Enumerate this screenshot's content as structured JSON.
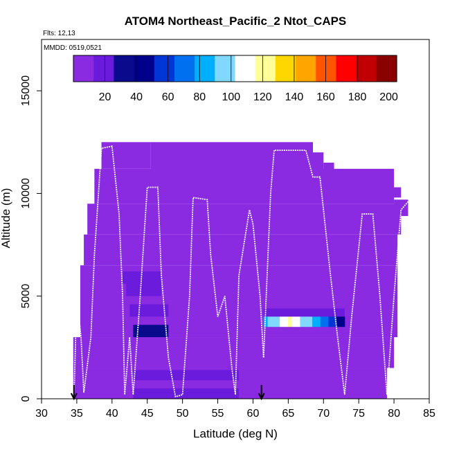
{
  "chart_data": {
    "type": "heatmap",
    "title": "ATOM4 Northeast_Pacific_2 Ntot_CAPS",
    "flights_label": "Flts: 12,13",
    "dates_label": "MMDD: 0519,0521",
    "xlabel": "Latitude (deg N)",
    "ylabel": "Altitude (m)",
    "xlim": [
      30,
      85
    ],
    "ylim": [
      0,
      17500
    ],
    "x_ticks": [
      30,
      35,
      40,
      45,
      50,
      55,
      60,
      65,
      70,
      75,
      80,
      85
    ],
    "y_ticks": [
      0,
      5000,
      10000,
      15000
    ],
    "colorbar": {
      "range": [
        0,
        205
      ],
      "ticks": [
        20,
        40,
        60,
        80,
        100,
        120,
        140,
        160,
        180,
        200
      ],
      "colors": [
        "#8a2be2",
        "#6a1bdc",
        "#0a0a8c",
        "#00008b",
        "#0035d6",
        "#0070f0",
        "#00b0ff",
        "#80d8ff",
        "#ffffff",
        "#ffff99",
        "#ffd700",
        "#ffa500",
        "#ff5500",
        "#ff0000",
        "#c00000",
        "#8b0000"
      ]
    },
    "background_cells": [
      {
        "lat0": 38.5,
        "lat1": 45.5,
        "alt0": 11200,
        "alt1": 12500
      },
      {
        "lat0": 45.5,
        "lat1": 68.5,
        "alt0": 11000,
        "alt1": 12500
      },
      {
        "lat0": 68.5,
        "lat1": 70,
        "alt0": 10700,
        "alt1": 12000
      },
      {
        "lat0": 70,
        "lat1": 71.5,
        "alt0": 10500,
        "alt1": 11500
      },
      {
        "lat0": 71.5,
        "lat1": 74,
        "alt0": 10200,
        "alt1": 11000
      },
      {
        "lat0": 74,
        "lat1": 77,
        "alt0": 10000,
        "alt1": 10800
      },
      {
        "lat0": 77,
        "lat1": 81,
        "alt0": 9800,
        "alt1": 10300
      },
      {
        "lat0": 37.5,
        "lat1": 80,
        "alt0": 9500,
        "alt1": 11200
      },
      {
        "lat0": 80,
        "lat1": 82,
        "alt0": 8900,
        "alt1": 9700
      },
      {
        "lat0": 36.5,
        "lat1": 81,
        "alt0": 8000,
        "alt1": 9500
      },
      {
        "lat0": 36,
        "lat1": 80.5,
        "alt0": 6500,
        "alt1": 8000
      },
      {
        "lat0": 35.5,
        "lat1": 80.5,
        "alt0": 3000,
        "alt1": 6500
      },
      {
        "lat0": 34.5,
        "lat1": 80,
        "alt0": 1500,
        "alt1": 3000
      },
      {
        "lat0": 34.5,
        "lat1": 79,
        "alt0": 0,
        "alt1": 1500
      }
    ],
    "intense_cells": [
      {
        "lat0": 41.5,
        "lat1": 47,
        "alt0": 5600,
        "alt1": 6200,
        "value": 15
      },
      {
        "lat0": 42,
        "lat1": 47,
        "alt0": 5000,
        "alt1": 5600,
        "value": 20
      },
      {
        "lat0": 42.5,
        "lat1": 48,
        "alt0": 4000,
        "alt1": 4600,
        "value": 18
      },
      {
        "lat0": 43,
        "lat1": 48,
        "alt0": 3000,
        "alt1": 3600,
        "value": 28
      },
      {
        "lat0": 43,
        "lat1": 58,
        "alt0": 900,
        "alt1": 1400,
        "value": 25
      },
      {
        "lat0": 43,
        "lat1": 58,
        "alt0": 0,
        "alt1": 500,
        "value": 22
      },
      {
        "lat0": 61.5,
        "lat1": 73,
        "alt0": 4000,
        "alt1": 4400,
        "value": 18
      },
      {
        "lat0": 61.5,
        "lat1": 73,
        "alt0": 3500,
        "alt1": 4000,
        "value": 120
      }
    ],
    "flight_track": [
      {
        "lat": 34.6,
        "alt": 0
      },
      {
        "lat": 35,
        "alt": 5000
      },
      {
        "lat": 35.6,
        "alt": 3000
      },
      {
        "lat": 36,
        "alt": 300
      },
      {
        "lat": 37,
        "alt": 3000
      },
      {
        "lat": 37.5,
        "alt": 7000
      },
      {
        "lat": 38.5,
        "alt": 12200
      },
      {
        "lat": 40,
        "alt": 12300
      },
      {
        "lat": 41,
        "alt": 9000
      },
      {
        "lat": 41.5,
        "alt": 5000
      },
      {
        "lat": 41.8,
        "alt": 200
      },
      {
        "lat": 42.5,
        "alt": 3000
      },
      {
        "lat": 43,
        "alt": 200
      },
      {
        "lat": 44,
        "alt": 5000
      },
      {
        "lat": 45,
        "alt": 10300
      },
      {
        "lat": 46.5,
        "alt": 10300
      },
      {
        "lat": 47,
        "alt": 6000
      },
      {
        "lat": 48,
        "alt": 2000
      },
      {
        "lat": 49,
        "alt": 100
      },
      {
        "lat": 50,
        "alt": 200
      },
      {
        "lat": 51,
        "alt": 5000
      },
      {
        "lat": 51.5,
        "alt": 9800
      },
      {
        "lat": 53.5,
        "alt": 9700
      },
      {
        "lat": 54,
        "alt": 7000
      },
      {
        "lat": 55,
        "alt": 4000
      },
      {
        "lat": 56,
        "alt": 5000
      },
      {
        "lat": 57,
        "alt": 1500
      },
      {
        "lat": 57.5,
        "alt": 200
      },
      {
        "lat": 58,
        "alt": 6000
      },
      {
        "lat": 59.5,
        "alt": 9200
      },
      {
        "lat": 60,
        "alt": 8500
      },
      {
        "lat": 61,
        "alt": 5000
      },
      {
        "lat": 61.5,
        "alt": 2000
      },
      {
        "lat": 62.5,
        "alt": 10000
      },
      {
        "lat": 63,
        "alt": 12100
      },
      {
        "lat": 67.5,
        "alt": 12100
      },
      {
        "lat": 68.5,
        "alt": 10800
      },
      {
        "lat": 69.5,
        "alt": 10800
      },
      {
        "lat": 71,
        "alt": 6000
      },
      {
        "lat": 72,
        "alt": 3000
      },
      {
        "lat": 73,
        "alt": 200
      },
      {
        "lat": 74,
        "alt": 4000
      },
      {
        "lat": 75.5,
        "alt": 9000
      },
      {
        "lat": 77,
        "alt": 9000
      },
      {
        "lat": 78,
        "alt": 5000
      },
      {
        "lat": 79,
        "alt": 200
      },
      {
        "lat": 80,
        "alt": 5000
      },
      {
        "lat": 81,
        "alt": 9200
      },
      {
        "lat": 82,
        "alt": 9600
      }
    ],
    "arrows": [
      {
        "lat": 34.6
      },
      {
        "lat": 61.2
      }
    ]
  }
}
